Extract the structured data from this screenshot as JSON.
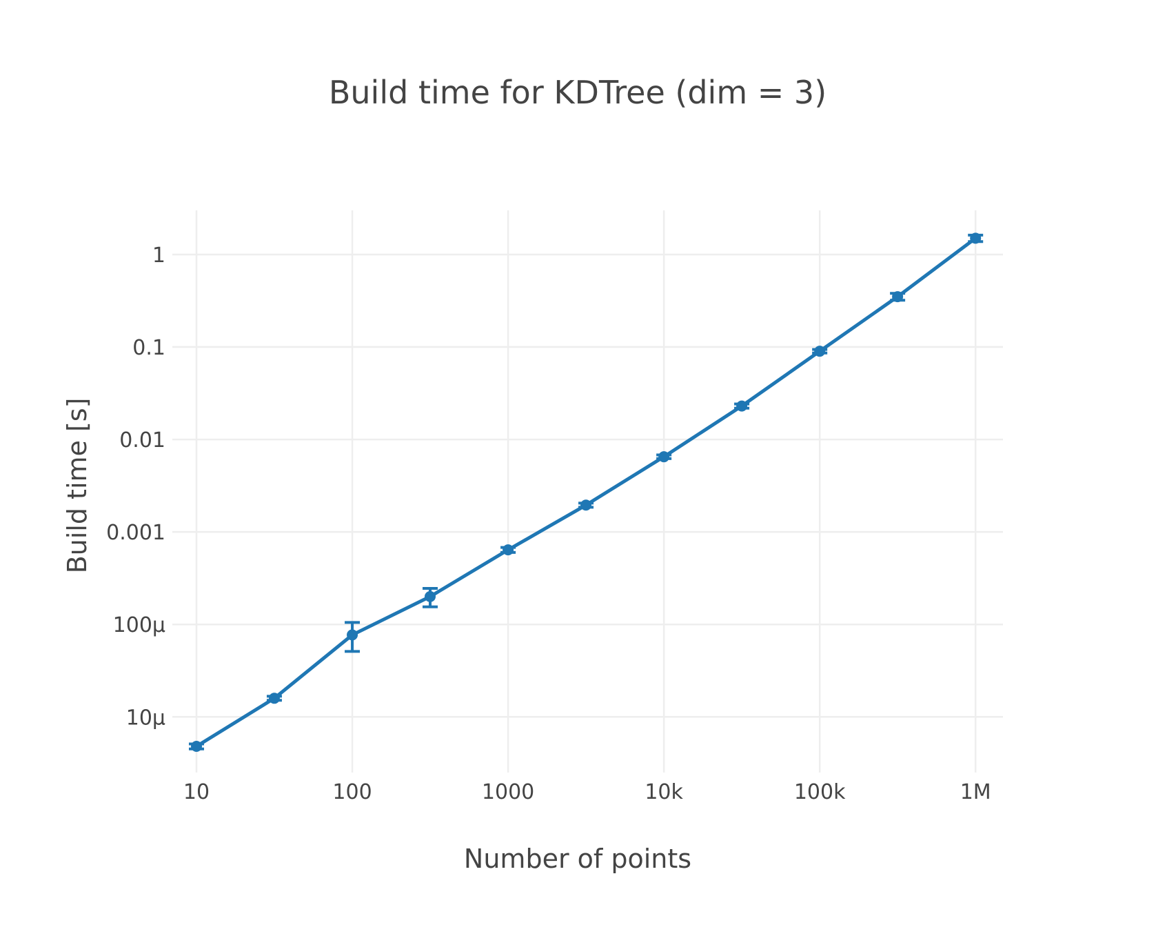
{
  "chart_data": {
    "type": "line",
    "title": "Build time for KDTree (dim = 3)",
    "xlabel": "Number of points",
    "ylabel": "Build time [s]",
    "xscale": "log",
    "yscale": "log",
    "xlim": [
      7,
      1500000
    ],
    "ylim": [
      2.5e-06,
      3
    ],
    "grid": true,
    "x_ticks": [
      {
        "value": 10,
        "label": "10"
      },
      {
        "value": 100,
        "label": "100"
      },
      {
        "value": 1000,
        "label": "1000"
      },
      {
        "value": 10000,
        "label": "10k"
      },
      {
        "value": 100000,
        "label": "100k"
      },
      {
        "value": 1000000,
        "label": "1M"
      }
    ],
    "y_ticks": [
      {
        "value": 1e-05,
        "label": "10µ"
      },
      {
        "value": 0.0001,
        "label": "100µ"
      },
      {
        "value": 0.001,
        "label": "0.001"
      },
      {
        "value": 0.01,
        "label": "0.01"
      },
      {
        "value": 0.1,
        "label": "0.1"
      },
      {
        "value": 1,
        "label": "1"
      }
    ],
    "series": [
      {
        "color": "#1f77b4",
        "x": [
          10,
          31.6,
          100,
          316,
          1000,
          3160,
          10000,
          31600,
          100000,
          316000,
          1000000
        ],
        "y": [
          4.8e-06,
          1.59e-05,
          7.7e-05,
          0.0002,
          0.00064,
          0.00195,
          0.0065,
          0.023,
          0.09,
          0.35,
          1.5
        ],
        "y_err_minus": [
          3e-07,
          8e-07,
          2.6e-05,
          4.5e-05,
          4e-05,
          0.0001,
          0.0003,
          0.0012,
          0.004,
          0.03,
          0.12
        ],
        "y_err_plus": [
          3e-07,
          8e-07,
          2.8e-05,
          4.5e-05,
          4e-05,
          0.0001,
          0.0003,
          0.0012,
          0.004,
          0.03,
          0.12
        ]
      }
    ]
  }
}
